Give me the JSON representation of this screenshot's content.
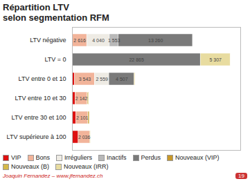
{
  "chart_data": {
    "type": "bar",
    "title": "Répartition LTV",
    "subtitle": "selon segmentation RFM",
    "orientation": "horizontal",
    "stacked": true,
    "data_labels": true,
    "tick_labels": "y",
    "legend": "bottom",
    "grid": false,
    "xlim": [
      0,
      30000
    ],
    "categories": [
      "LTV négative",
      "LTV = 0",
      "LTV entre 0 et 10",
      "LTV entre 10 et 30",
      "LTV entre 30 et 100",
      "LTV supérieure à 100"
    ],
    "series": [
      {
        "name": "VIP",
        "color": "#dd1111",
        "values": [
          0,
          0,
          450,
          550,
          700,
          1100
        ],
        "value_labels": [
          null,
          null,
          null,
          null,
          null,
          null
        ]
      },
      {
        "name": "Bons",
        "color": "#f2b49a",
        "values": [
          2616,
          0,
          3543,
          2142,
          2101,
          2036
        ],
        "value_labels": [
          "2 616",
          null,
          "3 543",
          "2 142",
          "2 101",
          "2 036"
        ]
      },
      {
        "name": "Irréguliers",
        "color": "#eeebe4",
        "values": [
          4040,
          0,
          2559,
          0,
          0,
          0
        ],
        "value_labels": [
          "4 040",
          null,
          "2 559",
          null,
          null,
          null
        ]
      },
      {
        "name": "Inactifs",
        "color": "#b8b8b8",
        "values": [
          1553,
          0,
          0,
          0,
          0,
          0
        ],
        "value_labels": [
          "1 553",
          null,
          null,
          null,
          null,
          null
        ]
      },
      {
        "name": "Perdus",
        "color": "#7a7a7a",
        "values": [
          13260,
          22865,
          4507,
          0,
          0,
          0
        ],
        "value_labels": [
          "13 260",
          "22 865",
          "4 507",
          null,
          null,
          null
        ]
      },
      {
        "name": "Nouveaux (VIP)",
        "color": "#c8982a",
        "values": [
          0,
          0,
          0,
          150,
          180,
          0
        ],
        "value_labels": [
          null,
          null,
          null,
          null,
          null,
          null
        ]
      },
      {
        "name": "Nouveaux (B)",
        "color": "#d4b84a",
        "values": [
          0,
          0,
          120,
          110,
          130,
          100
        ],
        "value_labels": [
          null,
          null,
          null,
          null,
          null,
          null
        ]
      },
      {
        "name": "Nouveaux (IRR)",
        "color": "#e8dca0",
        "values": [
          0,
          5307,
          0,
          0,
          0,
          0
        ],
        "value_labels": [
          null,
          "5 307",
          null,
          null,
          null,
          null
        ]
      }
    ],
    "annotations": [
      "Joaquin Fernandez – www.jfernandez.ch",
      "19"
    ]
  }
}
